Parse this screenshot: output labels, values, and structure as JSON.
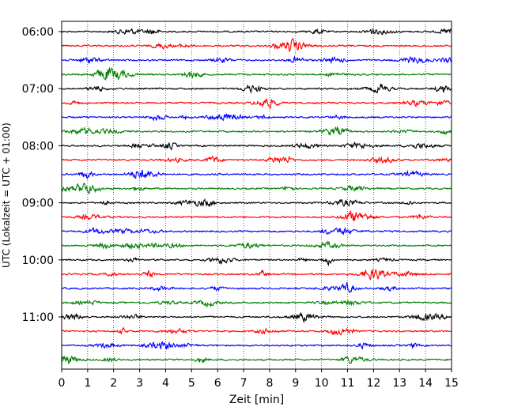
{
  "chart_data": {
    "type": "line",
    "title": "",
    "xlabel": "Zeit  [min]",
    "ylabel": "UTC (Lokalzeit = UTC + 01:00)",
    "xlim": [
      0,
      15
    ],
    "x_ticks": [
      "0",
      "1",
      "2",
      "3",
      "4",
      "5",
      "6",
      "7",
      "8",
      "9",
      "10",
      "11",
      "12",
      "13",
      "14",
      "15"
    ],
    "y_tick_labels": [
      "06:00",
      "07:00",
      "08:00",
      "09:00",
      "10:00",
      "11:00"
    ],
    "grid": "vertical dotted",
    "trace_interval_minutes": 15,
    "trace_colors": [
      "#000000",
      "#ff0000",
      "#0000ff",
      "#007f00"
    ],
    "traces": [
      {
        "start": "06:00"
      },
      {
        "start": "06:15"
      },
      {
        "start": "06:30"
      },
      {
        "start": "06:45"
      },
      {
        "start": "07:00"
      },
      {
        "start": "07:15"
      },
      {
        "start": "07:30"
      },
      {
        "start": "07:45"
      },
      {
        "start": "08:00"
      },
      {
        "start": "08:15"
      },
      {
        "start": "08:30"
      },
      {
        "start": "08:45"
      },
      {
        "start": "09:00"
      },
      {
        "start": "09:15"
      },
      {
        "start": "09:30"
      },
      {
        "start": "09:45"
      },
      {
        "start": "10:00"
      },
      {
        "start": "10:15"
      },
      {
        "start": "10:30"
      },
      {
        "start": "10:45"
      },
      {
        "start": "11:00"
      },
      {
        "start": "11:15"
      },
      {
        "start": "11:30"
      },
      {
        "start": "11:45"
      }
    ]
  }
}
